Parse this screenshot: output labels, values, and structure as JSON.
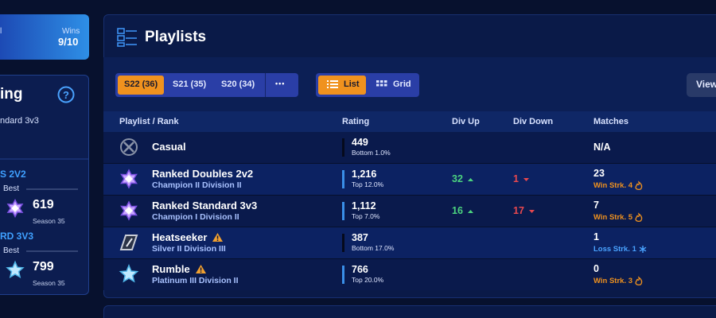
{
  "sidebar": {
    "partial_label": "l",
    "wins_label": "Wins",
    "wins": "9/10",
    "rating_title": "ing",
    "rating_subtitle": "ndard 3v3",
    "sections": [
      {
        "title": "S 2V2",
        "best": "Best",
        "value": "619",
        "season": "Season 35",
        "icon": "champion"
      },
      {
        "title": "RD 3V3",
        "best": "Best",
        "value": "799",
        "season": "Season 35",
        "icon": "platinum"
      }
    ]
  },
  "playlists": {
    "title": "Playlists",
    "seasons": [
      "S22 (36)",
      "S21 (35)",
      "S20 (34)"
    ],
    "more": "•••",
    "views": [
      "List",
      "Grid"
    ],
    "view_button": "View",
    "columns": [
      "Playlist / Rank",
      "Rating",
      "Div Up",
      "Div Down",
      "Matches"
    ],
    "rows": [
      {
        "name": "Casual",
        "icon": "casual",
        "rating": "449",
        "rating_sub": "Bottom 1.0%",
        "bar_color": "#050a1c",
        "matches": "N/A"
      },
      {
        "name": "Ranked Doubles 2v2",
        "rank": "Champion II Division II",
        "icon": "champion",
        "rating": "1,216",
        "rating_sub": "Top 12.0%",
        "bar_color": "#3a8fe8",
        "div_up": "32",
        "div_down": "1",
        "matches": "23",
        "streak": "Win Strk. 4",
        "streak_color": "#f0921e",
        "streak_icon": "flame"
      },
      {
        "name": "Ranked Standard 3v3",
        "rank": "Champion I Division II",
        "icon": "champion",
        "rating": "1,112",
        "rating_sub": "Top 7.0%",
        "bar_color": "#3a8fe8",
        "div_up": "16",
        "div_down": "17",
        "matches": "7",
        "streak": "Win Strk. 5",
        "streak_color": "#f0921e",
        "streak_icon": "flame"
      },
      {
        "name": "Heatseeker",
        "warning": true,
        "rank": "Silver II Division III",
        "icon": "silver",
        "rating": "387",
        "rating_sub": "Bottom 17.0%",
        "bar_color": "#050a1c",
        "matches": "1",
        "streak": "Loss Strk. 1",
        "streak_color": "#4aa3ff",
        "streak_icon": "snowflake"
      },
      {
        "name": "Rumble",
        "warning": true,
        "rank": "Platinum III Division II",
        "icon": "platinum",
        "rating": "766",
        "rating_sub": "Top 20.0%",
        "bar_color": "#3a8fe8",
        "matches": "0",
        "streak": "Win Strk. 3",
        "streak_color": "#f0921e",
        "streak_icon": "flame"
      }
    ]
  }
}
